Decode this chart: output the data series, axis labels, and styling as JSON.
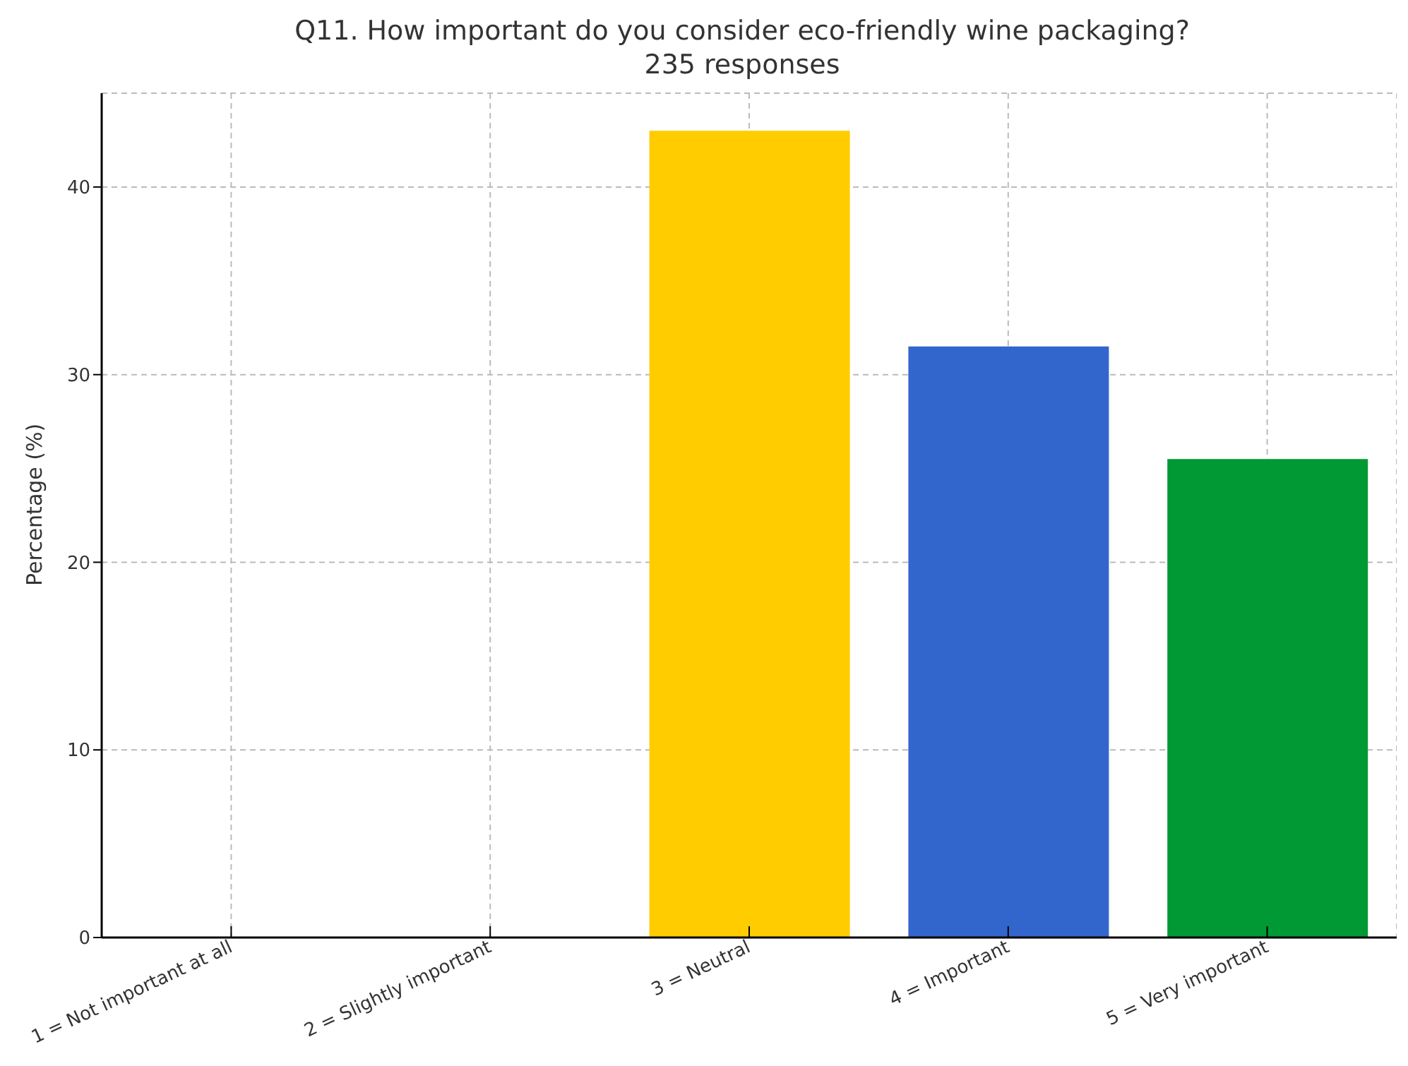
{
  "chart_data": {
    "type": "bar",
    "title": "Q11. How important do you consider eco-friendly wine packaging?",
    "subtitle": "235 responses",
    "ylabel": "Percentage (%)",
    "categories": [
      "1 = Not important at all",
      "2 = Slightly important",
      "3 = Neutral",
      "4 = Important",
      "5 = Very important"
    ],
    "values": [
      0,
      0,
      43.0,
      31.5,
      25.5
    ],
    "colors": [
      "#3366cc",
      "#dc3912",
      "#ffcc00",
      "#3366cc",
      "#009933"
    ],
    "ylim": [
      0,
      45
    ],
    "yticks": [
      0,
      10,
      20,
      30,
      40
    ],
    "grid": true
  }
}
